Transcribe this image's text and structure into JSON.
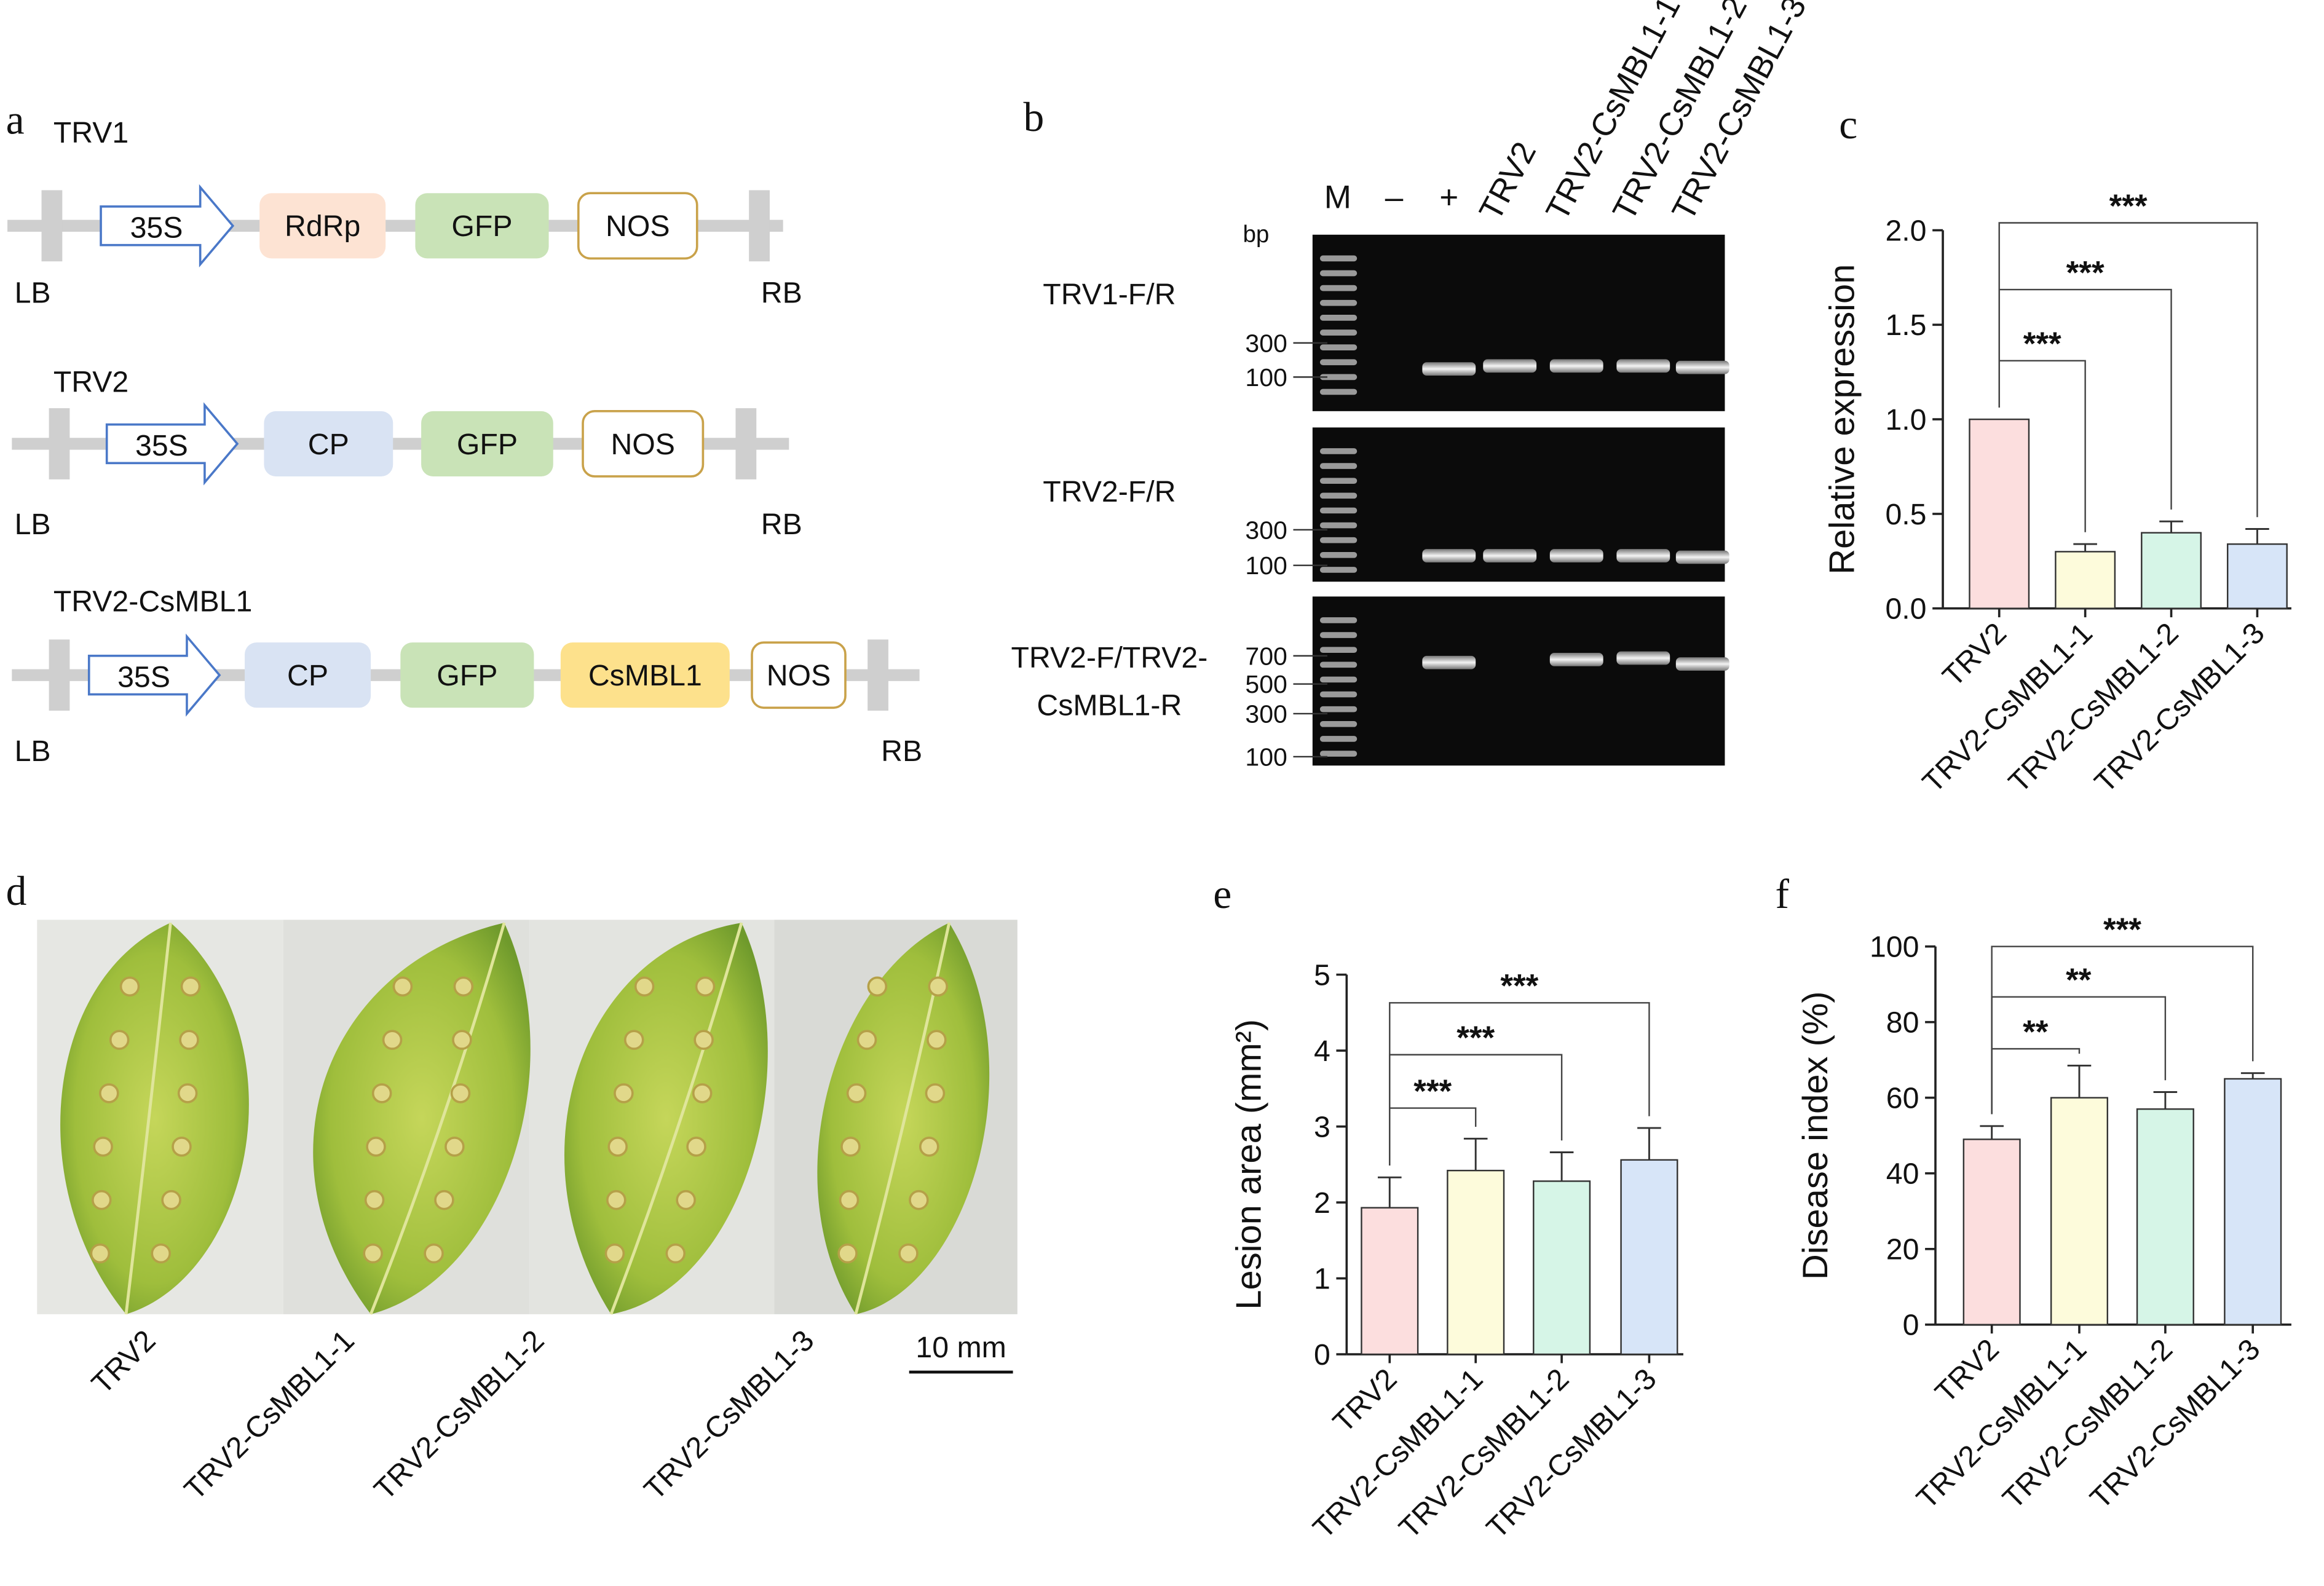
{
  "panels": {
    "a": {
      "letter": "a",
      "constructs": [
        {
          "name": "TRV1",
          "left": "LB",
          "right": "RB",
          "elements": [
            "35S",
            "RdRp",
            "GFP",
            "NOS"
          ]
        },
        {
          "name": "TRV2",
          "left": "LB",
          "right": "RB",
          "elements": [
            "35S",
            "CP",
            "GFP",
            "NOS"
          ]
        },
        {
          "name": "TRV2-CsMBL1",
          "left": "LB",
          "right": "RB",
          "elements": [
            "35S",
            "CP",
            "GFP",
            "CsMBL1",
            "NOS"
          ]
        }
      ]
    },
    "b": {
      "letter": "b",
      "unit": "bp",
      "lanes": [
        "M",
        "–",
        "+",
        "TRV2",
        "TRV2-CsMBL1-1",
        "TRV2-CsMBL1-2",
        "TRV2-CsMBL1-3"
      ],
      "gels": [
        {
          "label": [
            "TRV1-F/R"
          ],
          "markers": [
            300,
            100
          ]
        },
        {
          "label": [
            "TRV2-F/R"
          ],
          "markers": [
            300,
            100
          ]
        },
        {
          "label": [
            "TRV2-F/TRV2-",
            "CsMBL1-R"
          ],
          "markers": [
            700,
            500,
            300,
            100
          ]
        }
      ]
    },
    "d": {
      "letter": "d",
      "labels": [
        "TRV2",
        "TRV2-CsMBL1-1",
        "TRV2-CsMBL1-2",
        "TRV2-CsMBL1-3"
      ],
      "scale_bar": "10 mm"
    }
  },
  "chart_data": [
    {
      "type": "bar",
      "panel_label": "c",
      "y_label": "Relative expression",
      "categories": [
        "TRV2",
        "TRV2-CsMBL1-1",
        "TRV2-CsMBL1-2",
        "TRV2-CsMBL1-3"
      ],
      "values": [
        1.0,
        0.3,
        0.4,
        0.34
      ],
      "errors": [
        0,
        0.04,
        0.06,
        0.08
      ],
      "colors": [
        "#fcdede",
        "#fdfbdb",
        "#d6f5e7",
        "#d7e5f8"
      ],
      "significance": [
        null,
        "***",
        "***",
        "***"
      ],
      "ylim": [
        0,
        2.0
      ],
      "yticks": [
        {
          "value": 0,
          "label": "0.0"
        },
        {
          "value": 0.5,
          "label": "0.5"
        },
        {
          "value": 1,
          "label": "1.0"
        },
        {
          "value": 1.5,
          "label": "1.5"
        },
        {
          "value": 2,
          "label": "2.0"
        }
      ]
    },
    {
      "type": "bar",
      "panel_label": "e",
      "y_label": "Lesion area (mm²)",
      "categories": [
        "TRV2",
        "TRV2-CsMBL1-1",
        "TRV2-CsMBL1-2",
        "TRV2-CsMBL1-3"
      ],
      "values": [
        1.93,
        2.42,
        2.28,
        2.56
      ],
      "errors": [
        0.4,
        0.42,
        0.38,
        0.42
      ],
      "colors": [
        "#fcdede",
        "#fdfbdb",
        "#d6f5e7",
        "#d7e5f8"
      ],
      "significance": [
        null,
        "***",
        "***",
        "***"
      ],
      "ylim": [
        0,
        5
      ],
      "yticks": [
        0,
        1,
        2,
        3,
        4,
        5
      ]
    },
    {
      "type": "bar",
      "panel_label": "f",
      "y_label": "Disease index (%)",
      "categories": [
        "TRV2",
        "TRV2-CsMBL1-1",
        "TRV2-CsMBL1-2",
        "TRV2-CsMBL1-3"
      ],
      "values": [
        49,
        60,
        57,
        65
      ],
      "errors": [
        3.5,
        8.5,
        4.5,
        1.5
      ],
      "colors": [
        "#fcdede",
        "#fdfbdb",
        "#d6f5e7",
        "#d7e5f8"
      ],
      "significance": [
        null,
        "**",
        "**",
        "***"
      ],
      "ylim": [
        0,
        100
      ],
      "yticks": [
        0,
        20,
        40,
        60,
        80,
        100
      ]
    }
  ]
}
